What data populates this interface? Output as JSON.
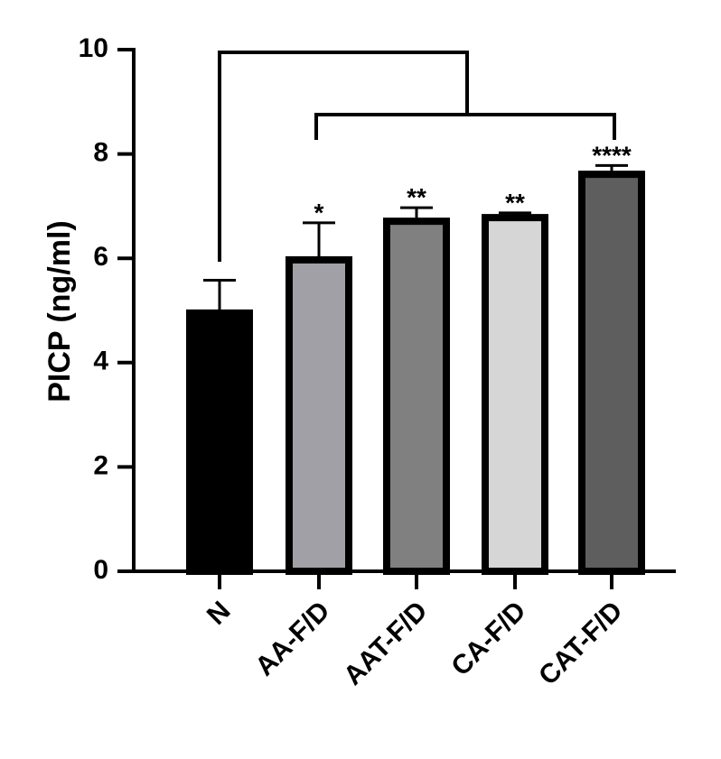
{
  "chart_data": {
    "type": "bar",
    "y_label": "PICP (ng/ml)",
    "categories": [
      "N",
      "AA-F/D",
      "AAT-F/D",
      "CA-F/D",
      "CAT-F/D"
    ],
    "values": [
      4.95,
      5.97,
      6.71,
      6.78,
      7.61
    ],
    "errors": [
      0.63,
      0.71,
      0.26,
      0.09,
      0.17
    ],
    "significance": [
      null,
      "*",
      "**",
      "**",
      "****"
    ],
    "colors": [
      "#000000",
      "#a0a0a6",
      "#808080",
      "#d6d6d6",
      "#5e5e5e"
    ],
    "ylim": [
      0,
      10
    ],
    "yticks": [
      0,
      2,
      4,
      6,
      8,
      10
    ]
  }
}
